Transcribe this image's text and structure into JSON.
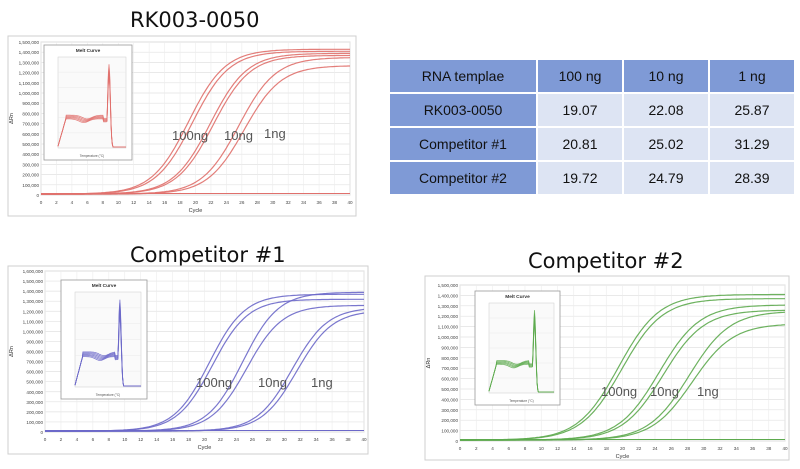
{
  "titles": {
    "rk": "RK003-0050",
    "comp1": "Competitor #1",
    "comp2": "Competitor #2"
  },
  "table": {
    "headers": [
      "RNA templae",
      "100 ng",
      "10 ng",
      "1 ng"
    ],
    "rows": [
      {
        "label": "RK003-0050",
        "values": [
          "19.07",
          "22.08",
          "25.87"
        ]
      },
      {
        "label": "Competitor #1",
        "values": [
          "20.81",
          "25.02",
          "31.29"
        ]
      },
      {
        "label": "Competitor #2",
        "values": [
          "19.72",
          "24.79",
          "28.39"
        ]
      }
    ],
    "colors": {
      "header": "#7f9ad6",
      "cell": "#dde4f3"
    }
  },
  "chart_data": [
    {
      "type": "line",
      "title": "RK003-0050",
      "xlabel": "Cycle",
      "ylabel": "ΔRn",
      "xlim": [
        0,
        40
      ],
      "ylim": [
        0,
        1500000
      ],
      "xticks": [
        0,
        2,
        4,
        6,
        8,
        10,
        12,
        14,
        16,
        18,
        20,
        22,
        24,
        26,
        28,
        30,
        32,
        34,
        36,
        38,
        40
      ],
      "yticks": [
        0,
        100000,
        200000,
        300000,
        400000,
        500000,
        600000,
        700000,
        800000,
        900000,
        1000000,
        1100000,
        1200000,
        1300000,
        1400000,
        1500000
      ],
      "grid": true,
      "color": "#e0706c",
      "annotations": [
        "100ng",
        "10ng",
        "1ng"
      ],
      "series": [
        {
          "ct": 19.1,
          "plateau": 1420000,
          "slope": 0.42
        },
        {
          "ct": 19.6,
          "plateau": 1400000,
          "slope": 0.42
        },
        {
          "ct": 21.9,
          "plateau": 1380000,
          "slope": 0.42
        },
        {
          "ct": 22.3,
          "plateau": 1360000,
          "slope": 0.42
        },
        {
          "ct": 25.6,
          "plateau": 1340000,
          "slope": 0.42
        },
        {
          "ct": 26.3,
          "plateau": 1260000,
          "slope": 0.42
        }
      ],
      "inset": {
        "title": "Melt Curve",
        "xlabel": "Temperature (°C)",
        "peak_position": 0.75,
        "curve_count": 5
      }
    },
    {
      "type": "line",
      "title": "Competitor #1",
      "xlabel": "Cycle",
      "ylabel": "ΔRn",
      "xlim": [
        0,
        40
      ],
      "ylim": [
        0,
        1600000
      ],
      "xticks": [
        0,
        2,
        4,
        6,
        8,
        10,
        12,
        14,
        16,
        18,
        20,
        22,
        24,
        26,
        28,
        30,
        32,
        34,
        36,
        38,
        40
      ],
      "yticks": [
        0,
        100000,
        200000,
        300000,
        400000,
        500000,
        600000,
        700000,
        800000,
        900000,
        1000000,
        1100000,
        1200000,
        1300000,
        1400000,
        1500000,
        1600000
      ],
      "grid": true,
      "color": "#6c68c9",
      "annotations": [
        "100ng",
        "10ng",
        "1ng"
      ],
      "series": [
        {
          "ct": 20.6,
          "plateau": 1360000,
          "slope": 0.45
        },
        {
          "ct": 21.0,
          "plateau": 1310000,
          "slope": 0.45
        },
        {
          "ct": 24.8,
          "plateau": 1380000,
          "slope": 0.45
        },
        {
          "ct": 25.3,
          "plateau": 1250000,
          "slope": 0.45
        },
        {
          "ct": 31.0,
          "plateau": 1230000,
          "slope": 0.45
        },
        {
          "ct": 31.6,
          "plateau": 1200000,
          "slope": 0.45
        }
      ],
      "inset": {
        "title": "Melt Curve",
        "xlabel": "Temperature (°C)",
        "peak_position": 0.68,
        "curve_count": 6
      }
    },
    {
      "type": "line",
      "title": "Competitor #2",
      "xlabel": "Cycle",
      "ylabel": "ΔRn",
      "xlim": [
        0,
        40
      ],
      "ylim": [
        0,
        1500000
      ],
      "xticks": [
        0,
        2,
        4,
        6,
        8,
        10,
        12,
        14,
        16,
        18,
        20,
        22,
        24,
        26,
        28,
        30,
        32,
        34,
        36,
        38,
        40
      ],
      "yticks": [
        0,
        100000,
        200000,
        300000,
        400000,
        500000,
        600000,
        700000,
        800000,
        900000,
        1000000,
        1100000,
        1200000,
        1300000,
        1400000,
        1500000
      ],
      "grid": true,
      "color": "#5daa4e",
      "annotations": [
        "100ng",
        "10ng",
        "1ng"
      ],
      "series": [
        {
          "ct": 19.5,
          "plateau": 1400000,
          "slope": 0.4
        },
        {
          "ct": 19.9,
          "plateau": 1360000,
          "slope": 0.4
        },
        {
          "ct": 24.5,
          "plateau": 1300000,
          "slope": 0.4
        },
        {
          "ct": 25.0,
          "plateau": 1250000,
          "slope": 0.4
        },
        {
          "ct": 28.2,
          "plateau": 1240000,
          "slope": 0.4
        },
        {
          "ct": 28.6,
          "plateau": 1120000,
          "slope": 0.4
        }
      ],
      "inset": {
        "title": "Melt Curve",
        "xlabel": "Temperature (°C)",
        "peak_position": 0.7,
        "curve_count": 5
      }
    }
  ]
}
